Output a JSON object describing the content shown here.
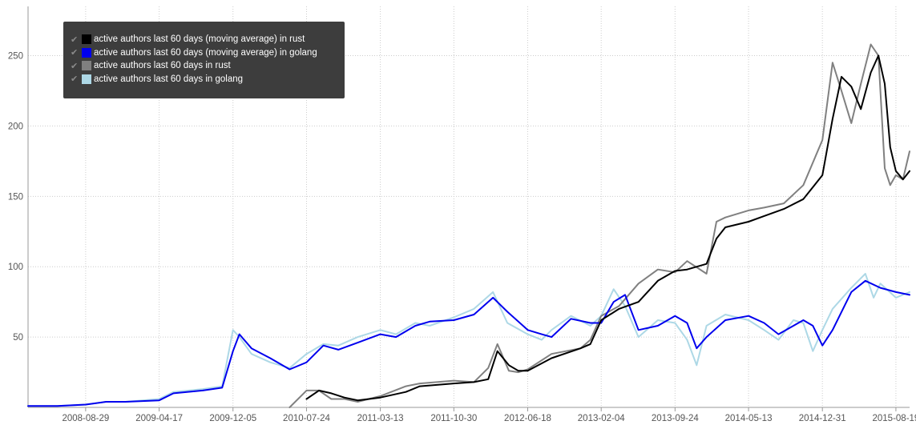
{
  "chart_data": {
    "type": "line",
    "x_axis": {
      "ticks": [
        "2008-08-29",
        "2009-04-17",
        "2009-12-05",
        "2010-07-24",
        "2011-03-13",
        "2011-10-30",
        "2012-06-18",
        "2013-02-04",
        "2013-09-24",
        "2014-05-13",
        "2014-12-31",
        "2015-08-19"
      ],
      "range": [
        "2008-03-01",
        "2015-10-01"
      ]
    },
    "y_axis": {
      "ticks": [
        50,
        100,
        150,
        200,
        250
      ],
      "range": [
        0,
        285
      ]
    },
    "grid": true,
    "legend": {
      "placement": "top-left"
    },
    "series": [
      {
        "name": "active authors last 60 days (moving average) in rust",
        "color": "#000000",
        "points": [
          [
            "2010-07-24",
            6
          ],
          [
            "2010-09-01",
            12
          ],
          [
            "2010-10-10",
            10
          ],
          [
            "2010-11-20",
            7
          ],
          [
            "2011-01-01",
            5
          ],
          [
            "2011-03-13",
            7
          ],
          [
            "2011-06-01",
            11
          ],
          [
            "2011-07-15",
            15
          ],
          [
            "2011-10-30",
            17
          ],
          [
            "2012-01-01",
            18
          ],
          [
            "2012-02-15",
            20
          ],
          [
            "2012-03-15",
            40
          ],
          [
            "2012-04-20",
            30
          ],
          [
            "2012-05-20",
            26
          ],
          [
            "2012-06-18",
            26
          ],
          [
            "2012-09-01",
            35
          ],
          [
            "2012-12-01",
            42
          ],
          [
            "2013-01-01",
            45
          ],
          [
            "2013-02-04",
            62
          ],
          [
            "2013-04-01",
            70
          ],
          [
            "2013-06-01",
            75
          ],
          [
            "2013-08-01",
            90
          ],
          [
            "2013-09-24",
            97
          ],
          [
            "2013-11-01",
            98
          ],
          [
            "2014-01-01",
            102
          ],
          [
            "2014-02-01",
            120
          ],
          [
            "2014-03-01",
            128
          ],
          [
            "2014-05-13",
            132
          ],
          [
            "2014-07-01",
            136
          ],
          [
            "2014-09-01",
            141
          ],
          [
            "2014-11-01",
            148
          ],
          [
            "2014-12-31",
            165
          ],
          [
            "2015-02-01",
            205
          ],
          [
            "2015-03-01",
            235
          ],
          [
            "2015-04-01",
            228
          ],
          [
            "2015-05-01",
            212
          ],
          [
            "2015-06-01",
            238
          ],
          [
            "2015-06-25",
            250
          ],
          [
            "2015-07-15",
            230
          ],
          [
            "2015-08-01",
            185
          ],
          [
            "2015-08-19",
            168
          ],
          [
            "2015-09-10",
            162
          ],
          [
            "2015-10-01",
            168
          ]
        ]
      },
      {
        "name": "active authors last 60 days (moving average) in golang",
        "color": "#0000ee",
        "points": [
          [
            "2008-03-01",
            1
          ],
          [
            "2008-06-01",
            1
          ],
          [
            "2008-08-29",
            2
          ],
          [
            "2008-11-01",
            4
          ],
          [
            "2009-01-01",
            4
          ],
          [
            "2009-04-17",
            5
          ],
          [
            "2009-06-01",
            10
          ],
          [
            "2009-09-01",
            12
          ],
          [
            "2009-11-01",
            14
          ],
          [
            "2009-12-05",
            40
          ],
          [
            "2009-12-25",
            52
          ],
          [
            "2010-02-01",
            42
          ],
          [
            "2010-04-01",
            35
          ],
          [
            "2010-06-01",
            27
          ],
          [
            "2010-07-24",
            32
          ],
          [
            "2010-09-15",
            44
          ],
          [
            "2010-11-01",
            41
          ],
          [
            "2011-01-01",
            46
          ],
          [
            "2011-03-13",
            52
          ],
          [
            "2011-05-01",
            50
          ],
          [
            "2011-07-01",
            58
          ],
          [
            "2011-08-15",
            61
          ],
          [
            "2011-10-30",
            62
          ],
          [
            "2012-01-01",
            66
          ],
          [
            "2012-03-01",
            78
          ],
          [
            "2012-04-15",
            68
          ],
          [
            "2012-06-18",
            55
          ],
          [
            "2012-08-01",
            52
          ],
          [
            "2012-09-01",
            50
          ],
          [
            "2012-11-01",
            63
          ],
          [
            "2013-01-01",
            60
          ],
          [
            "2013-02-04",
            60
          ],
          [
            "2013-03-15",
            75
          ],
          [
            "2013-04-20",
            80
          ],
          [
            "2013-06-01",
            55
          ],
          [
            "2013-08-01",
            58
          ],
          [
            "2013-09-24",
            65
          ],
          [
            "2013-11-01",
            60
          ],
          [
            "2013-12-01",
            42
          ],
          [
            "2014-01-01",
            50
          ],
          [
            "2014-03-01",
            62
          ],
          [
            "2014-05-13",
            65
          ],
          [
            "2014-07-01",
            60
          ],
          [
            "2014-08-15",
            52
          ],
          [
            "2014-10-01",
            58
          ],
          [
            "2014-11-01",
            62
          ],
          [
            "2014-12-01",
            58
          ],
          [
            "2014-12-31",
            44
          ],
          [
            "2015-02-01",
            55
          ],
          [
            "2015-04-01",
            82
          ],
          [
            "2015-05-15",
            90
          ],
          [
            "2015-07-01",
            85
          ],
          [
            "2015-08-19",
            82
          ],
          [
            "2015-10-01",
            80
          ]
        ]
      },
      {
        "name": "active authors last 60 days in rust",
        "color": "#808080",
        "points": [
          [
            "2010-06-01",
            0
          ],
          [
            "2010-07-24",
            12
          ],
          [
            "2010-09-01",
            12
          ],
          [
            "2010-10-10",
            6
          ],
          [
            "2010-11-20",
            6
          ],
          [
            "2011-01-01",
            4
          ],
          [
            "2011-03-13",
            8
          ],
          [
            "2011-06-01",
            15
          ],
          [
            "2011-07-15",
            17
          ],
          [
            "2011-10-30",
            19
          ],
          [
            "2012-01-01",
            18
          ],
          [
            "2012-02-15",
            28
          ],
          [
            "2012-03-15",
            45
          ],
          [
            "2012-04-20",
            26
          ],
          [
            "2012-05-20",
            25
          ],
          [
            "2012-06-18",
            27
          ],
          [
            "2012-09-01",
            38
          ],
          [
            "2012-12-01",
            42
          ],
          [
            "2013-01-01",
            48
          ],
          [
            "2013-02-04",
            65
          ],
          [
            "2013-04-01",
            72
          ],
          [
            "2013-06-01",
            88
          ],
          [
            "2013-08-01",
            98
          ],
          [
            "2013-09-24",
            96
          ],
          [
            "2013-11-01",
            104
          ],
          [
            "2014-01-01",
            95
          ],
          [
            "2014-02-01",
            132
          ],
          [
            "2014-03-01",
            135
          ],
          [
            "2014-05-13",
            140
          ],
          [
            "2014-07-01",
            142
          ],
          [
            "2014-09-01",
            145
          ],
          [
            "2014-11-01",
            158
          ],
          [
            "2014-12-31",
            190
          ],
          [
            "2015-02-01",
            245
          ],
          [
            "2015-03-01",
            225
          ],
          [
            "2015-04-01",
            202
          ],
          [
            "2015-05-01",
            230
          ],
          [
            "2015-06-01",
            258
          ],
          [
            "2015-06-25",
            250
          ],
          [
            "2015-07-15",
            170
          ],
          [
            "2015-08-01",
            158
          ],
          [
            "2015-08-19",
            165
          ],
          [
            "2015-09-10",
            162
          ],
          [
            "2015-10-01",
            182
          ]
        ]
      },
      {
        "name": "active authors last 60 days in golang",
        "color": "#add8e6",
        "points": [
          [
            "2008-03-01",
            1
          ],
          [
            "2008-06-01",
            1
          ],
          [
            "2008-08-29",
            2
          ],
          [
            "2008-11-01",
            4
          ],
          [
            "2009-01-01",
            4
          ],
          [
            "2009-04-17",
            6
          ],
          [
            "2009-06-01",
            11
          ],
          [
            "2009-09-01",
            13
          ],
          [
            "2009-11-01",
            15
          ],
          [
            "2009-12-05",
            55
          ],
          [
            "2009-12-25",
            50
          ],
          [
            "2010-02-01",
            38
          ],
          [
            "2010-04-01",
            32
          ],
          [
            "2010-06-01",
            28
          ],
          [
            "2010-07-24",
            38
          ],
          [
            "2010-09-15",
            45
          ],
          [
            "2010-11-01",
            44
          ],
          [
            "2011-01-01",
            50
          ],
          [
            "2011-03-13",
            55
          ],
          [
            "2011-05-01",
            52
          ],
          [
            "2011-07-01",
            60
          ],
          [
            "2011-08-15",
            58
          ],
          [
            "2011-10-30",
            64
          ],
          [
            "2012-01-01",
            70
          ],
          [
            "2012-03-01",
            82
          ],
          [
            "2012-04-15",
            60
          ],
          [
            "2012-06-18",
            52
          ],
          [
            "2012-08-01",
            48
          ],
          [
            "2012-09-01",
            55
          ],
          [
            "2012-11-01",
            65
          ],
          [
            "2013-01-01",
            58
          ],
          [
            "2013-02-04",
            65
          ],
          [
            "2013-03-15",
            84
          ],
          [
            "2013-04-20",
            72
          ],
          [
            "2013-06-01",
            50
          ],
          [
            "2013-08-01",
            62
          ],
          [
            "2013-09-24",
            60
          ],
          [
            "2013-11-01",
            48
          ],
          [
            "2013-12-01",
            30
          ],
          [
            "2014-01-01",
            58
          ],
          [
            "2014-03-01",
            66
          ],
          [
            "2014-05-13",
            62
          ],
          [
            "2014-07-01",
            55
          ],
          [
            "2014-08-15",
            48
          ],
          [
            "2014-10-01",
            62
          ],
          [
            "2014-11-01",
            60
          ],
          [
            "2014-12-01",
            40
          ],
          [
            "2014-12-31",
            55
          ],
          [
            "2015-02-01",
            70
          ],
          [
            "2015-04-01",
            85
          ],
          [
            "2015-05-15",
            95
          ],
          [
            "2015-06-10",
            78
          ],
          [
            "2015-07-01",
            88
          ],
          [
            "2015-08-19",
            78
          ],
          [
            "2015-10-01",
            82
          ]
        ]
      }
    ]
  }
}
